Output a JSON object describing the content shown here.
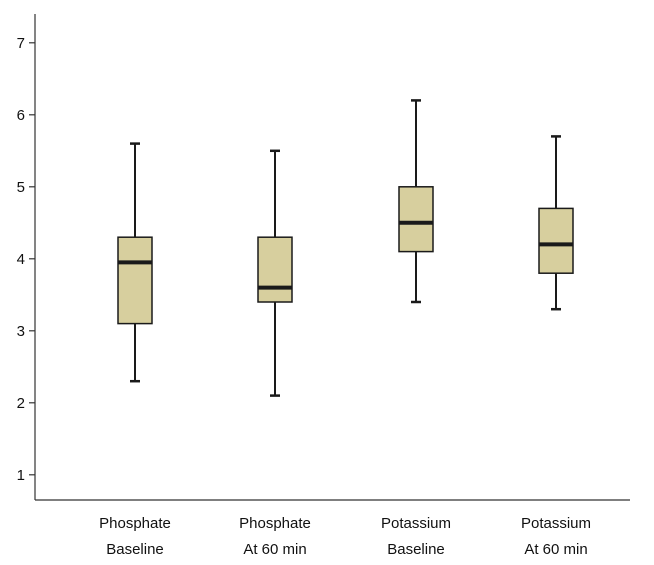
{
  "chart_data": {
    "type": "box",
    "title": "",
    "xlabel": "",
    "ylabel": "",
    "ylim": [
      0.65,
      7.4
    ],
    "yticks": [
      1,
      2,
      3,
      4,
      5,
      6,
      7
    ],
    "ytick_labels": [
      "1",
      "2",
      "3",
      "4",
      "5",
      "6",
      "7"
    ],
    "grid": false,
    "legend": "none",
    "categories": [
      {
        "line1": "Phosphate",
        "line2": "Baseline"
      },
      {
        "line1": "Phosphate",
        "line2": "At 60 min"
      },
      {
        "line1": "Potassium",
        "line2": "Baseline"
      },
      {
        "line1": "Potassium",
        "line2": "At 60 min"
      }
    ],
    "boxes": [
      {
        "min": 2.3,
        "q1": 3.1,
        "median": 3.95,
        "q3": 4.3,
        "max": 5.6
      },
      {
        "min": 2.1,
        "q1": 3.4,
        "median": 3.6,
        "q3": 4.3,
        "max": 5.5
      },
      {
        "min": 3.4,
        "q1": 4.1,
        "median": 4.5,
        "q3": 5.0,
        "max": 6.2
      },
      {
        "min": 3.3,
        "q1": 3.8,
        "median": 4.2,
        "q3": 4.7,
        "max": 5.7
      }
    ],
    "colors": {
      "box_fill": "#d7cf9e",
      "line": "#1a1a1a",
      "axis": "#333333"
    }
  }
}
